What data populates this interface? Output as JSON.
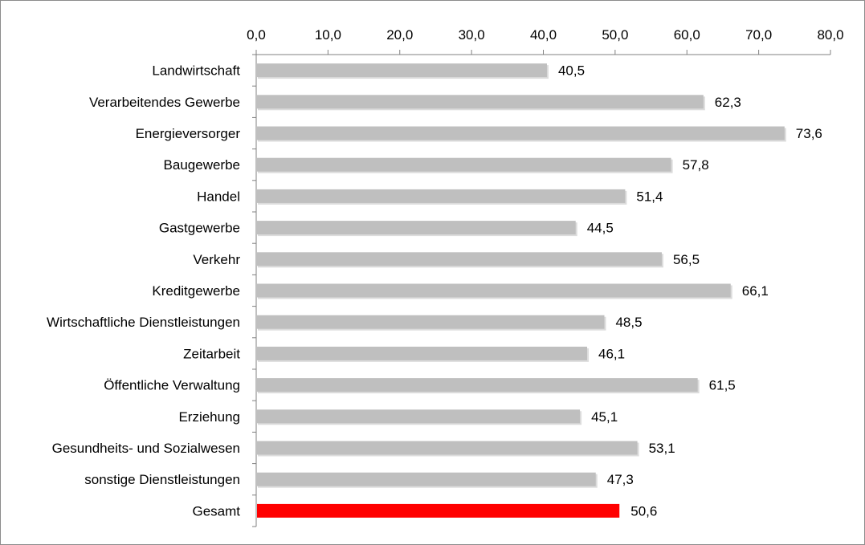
{
  "chart_data": {
    "type": "bar",
    "orientation": "horizontal",
    "title": "",
    "xlabel": "",
    "ylabel": "",
    "axis_position": "top",
    "xlim": [
      0,
      80
    ],
    "ticks": [
      0,
      10,
      20,
      30,
      40,
      50,
      60,
      70,
      80
    ],
    "tick_labels": [
      "0,0",
      "10,0",
      "20,0",
      "30,0",
      "40,0",
      "50,0",
      "60,0",
      "70,0",
      "80,0"
    ],
    "grid": false,
    "legend": "none",
    "categories": [
      "Landwirtschaft",
      "Verarbeitendes Gewerbe",
      "Energieversorger",
      "Baugewerbe",
      "Handel",
      "Gastgewerbe",
      "Verkehr",
      "Kreditgewerbe",
      "Wirtschaftliche Dienstleistungen",
      "Zeitarbeit",
      "Öffentliche Verwaltung",
      "Erziehung",
      "Gesundheits- und Sozialwesen",
      "sonstige Dienstleistungen",
      "Gesamt"
    ],
    "values": [
      40.5,
      62.3,
      73.6,
      57.8,
      51.4,
      44.5,
      56.5,
      66.1,
      48.5,
      46.1,
      61.5,
      45.1,
      53.1,
      47.3,
      50.6
    ],
    "value_labels": [
      "40,5",
      "62,3",
      "73,6",
      "57,8",
      "51,4",
      "44,5",
      "56,5",
      "66,1",
      "48,5",
      "46,1",
      "61,5",
      "45,1",
      "53,1",
      "47,3",
      "50,6"
    ],
    "colors": {
      "default_bar": "#bfbfbf",
      "highlight_bar": "#ff0000",
      "axis": "#808080"
    },
    "highlight_category": "Gesamt"
  }
}
